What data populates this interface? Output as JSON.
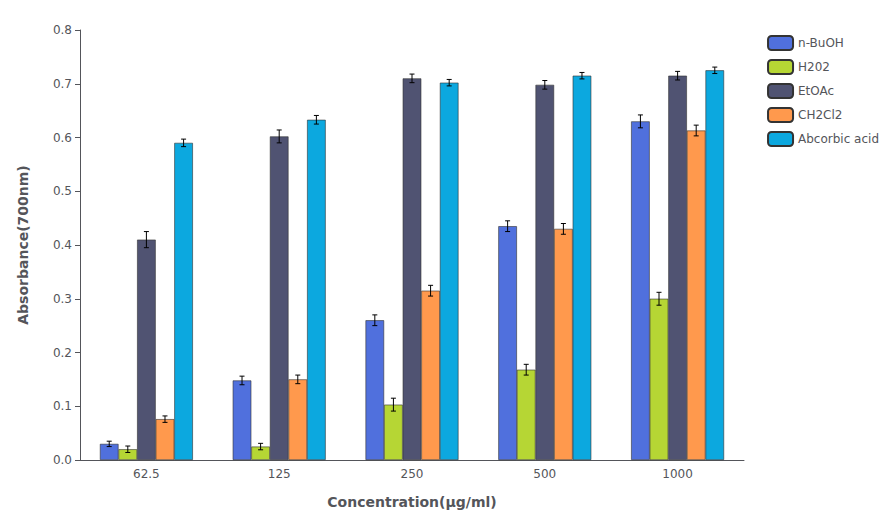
{
  "chart_data": {
    "type": "bar",
    "xlabel": "Concentration(μg/ml)",
    "ylabel": "Absorbance(700nm)",
    "categories": [
      "62.5",
      "125",
      "250",
      "500",
      "1000"
    ],
    "series": [
      {
        "name": "n-BuOH",
        "values": [
          0.03,
          0.148,
          0.26,
          0.435,
          0.63
        ],
        "errors": [
          0.005,
          0.008,
          0.01,
          0.01,
          0.012
        ]
      },
      {
        "name": "H202",
        "values": [
          0.02,
          0.025,
          0.103,
          0.168,
          0.3
        ],
        "errors": [
          0.006,
          0.006,
          0.012,
          0.01,
          0.012
        ]
      },
      {
        "name": "EtOAc",
        "values": [
          0.41,
          0.602,
          0.71,
          0.698,
          0.715
        ],
        "errors": [
          0.015,
          0.012,
          0.008,
          0.008,
          0.008
        ]
      },
      {
        "name": "CH2Cl2",
        "values": [
          0.076,
          0.15,
          0.315,
          0.43,
          0.613
        ],
        "errors": [
          0.006,
          0.008,
          0.01,
          0.01,
          0.01
        ]
      },
      {
        "name": "Abcorbic acid",
        "values": [
          0.59,
          0.633,
          0.702,
          0.715,
          0.725
        ],
        "errors": [
          0.007,
          0.008,
          0.006,
          0.006,
          0.006
        ]
      }
    ],
    "ylim": [
      0,
      0.8
    ],
    "yticks": [
      {
        "value": 0,
        "label": "0.0"
      },
      0.1,
      0.2,
      0.3,
      0.4,
      0.5,
      0.6,
      0.7,
      0.8
    ],
    "grid": false,
    "legend": "right"
  }
}
